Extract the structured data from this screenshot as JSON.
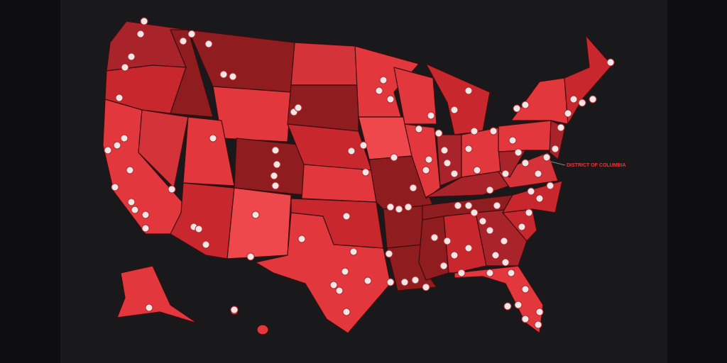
{
  "map": {
    "label": "DISTRICT OF COLUMBIA"
  }
}
